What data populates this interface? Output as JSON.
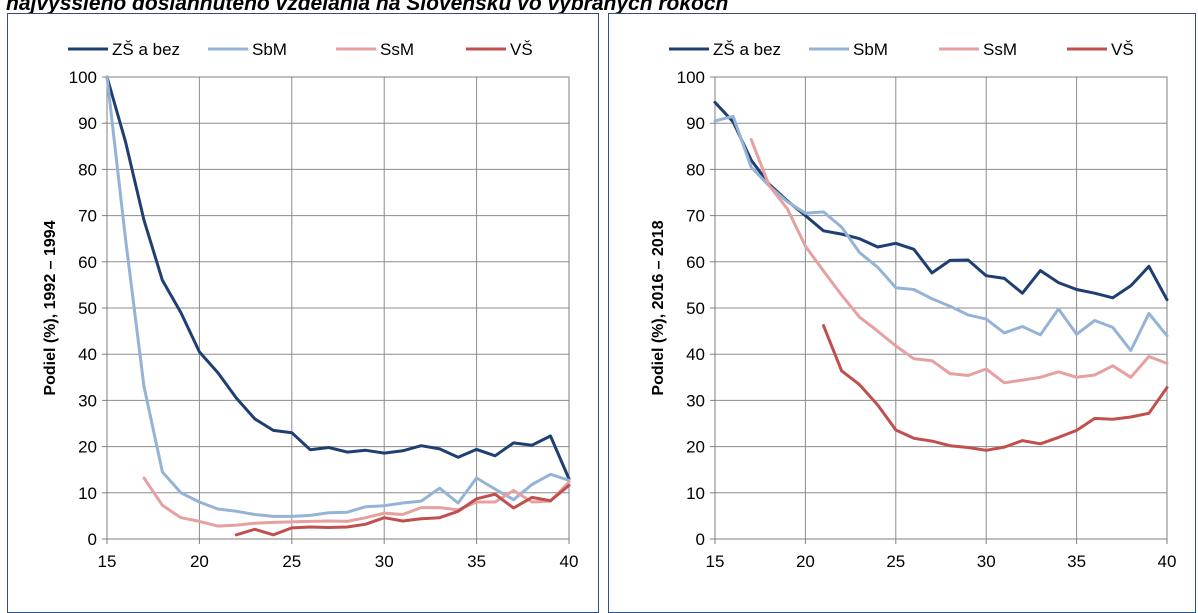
{
  "title": "najvyššieho dosiahnutého vzdelania na Slovensku vo vybraných rokoch",
  "chart_data": [
    {
      "type": "line",
      "ylabel": "Podiel (%), 1992 – 1994",
      "xlabel": "",
      "xlim": [
        15,
        40
      ],
      "ylim": [
        0,
        100
      ],
      "xticks": [
        15,
        20,
        25,
        30,
        35,
        40
      ],
      "yticks": [
        0,
        10,
        20,
        30,
        40,
        50,
        60,
        70,
        80,
        90,
        100
      ],
      "grid": true,
      "legend": "top",
      "series": [
        {
          "name": "ZŠ a bez",
          "color": "#1f3f73",
          "x": [
            15,
            16,
            17,
            18,
            19,
            20,
            21,
            22,
            23,
            24,
            25,
            26,
            27,
            28,
            29,
            30,
            31,
            32,
            33,
            34,
            35,
            36,
            37,
            38,
            39,
            40
          ],
          "values": [
            100,
            86,
            69,
            56,
            49,
            40.5,
            36,
            30.5,
            26,
            23.5,
            23,
            19.3,
            19.8,
            18.8,
            19.2,
            18.6,
            19.1,
            20.2,
            19.5,
            17.7,
            19.4,
            18,
            20.8,
            20.3,
            22.3,
            13
          ]
        },
        {
          "name": "SbM",
          "color": "#95b3d7",
          "x": [
            15,
            16,
            17,
            18,
            19,
            20,
            21,
            22,
            23,
            24,
            25,
            26,
            27,
            28,
            29,
            30,
            31,
            32,
            33,
            34,
            35,
            36,
            37,
            38,
            39,
            40
          ],
          "values": [
            100,
            65,
            33,
            14.5,
            10,
            8,
            6.5,
            6,
            5.3,
            4.9,
            4.9,
            5.1,
            5.7,
            5.8,
            7,
            7.2,
            7.8,
            8.2,
            11,
            7.8,
            13.2,
            10.8,
            8.5,
            11.8,
            14,
            12.7
          ]
        },
        {
          "name": "SsM",
          "color": "#e6a0a0",
          "x": [
            17,
            18,
            19,
            20,
            21,
            22,
            23,
            24,
            25,
            26,
            27,
            28,
            29,
            30,
            31,
            32,
            33,
            34,
            35,
            36,
            37,
            38,
            39,
            40
          ],
          "values": [
            13.2,
            7.3,
            4.6,
            3.8,
            2.8,
            3.0,
            3.4,
            3.6,
            3.7,
            3.8,
            3.9,
            3.8,
            4.6,
            5.6,
            5.3,
            6.8,
            6.8,
            6.3,
            8,
            8,
            10.5,
            8,
            8.2,
            12.3
          ]
        },
        {
          "name": "VŠ",
          "color": "#c0504d",
          "x": [
            22,
            23,
            24,
            25,
            26,
            27,
            28,
            29,
            30,
            31,
            32,
            33,
            34,
            35,
            36,
            37,
            38,
            39,
            40
          ],
          "values": [
            0.9,
            2.1,
            0.9,
            2.4,
            2.6,
            2.5,
            2.6,
            3.2,
            4.6,
            3.9,
            4.4,
            4.6,
            6,
            8.7,
            9.7,
            6.7,
            9,
            8.3,
            11.6
          ]
        }
      ]
    },
    {
      "type": "line",
      "ylabel": "Podiel (%), 2016 – 2018",
      "xlabel": "",
      "xlim": [
        15,
        40
      ],
      "ylim": [
        0,
        100
      ],
      "xticks": [
        15,
        20,
        25,
        30,
        35,
        40
      ],
      "yticks": [
        0,
        10,
        20,
        30,
        40,
        50,
        60,
        70,
        80,
        90,
        100
      ],
      "grid": true,
      "legend": "top",
      "series": [
        {
          "name": "ZŠ a bez",
          "color": "#1f3f73",
          "x": [
            15,
            16,
            17,
            18,
            19,
            20,
            21,
            22,
            23,
            24,
            25,
            26,
            27,
            28,
            29,
            30,
            31,
            32,
            33,
            34,
            35,
            36,
            37,
            38,
            39,
            40
          ],
          "values": [
            94.5,
            90.3,
            82,
            76.8,
            73.2,
            70,
            66.7,
            66,
            65,
            63.2,
            64,
            62.7,
            57.6,
            60.3,
            60.4,
            57,
            56.4,
            53.2,
            58.1,
            55.5,
            54,
            53.2,
            52.2,
            54.8,
            59,
            51.8
          ]
        },
        {
          "name": "SbM",
          "color": "#95b3d7",
          "x": [
            15,
            16,
            17,
            18,
            19,
            20,
            21,
            22,
            23,
            24,
            25,
            26,
            27,
            28,
            29,
            30,
            31,
            32,
            33,
            34,
            35,
            36,
            37,
            38,
            39,
            40
          ],
          "values": [
            90.5,
            91.5,
            80.5,
            76.4,
            73,
            70.5,
            70.8,
            67.5,
            62,
            58.8,
            54.4,
            54,
            52,
            50.4,
            48.5,
            47.6,
            44.6,
            46,
            44.2,
            49.8,
            44.3,
            47.3,
            45.8,
            40.8,
            48.8,
            44
          ]
        },
        {
          "name": "SsM",
          "color": "#e6a0a0",
          "x": [
            17,
            18,
            19,
            20,
            21,
            22,
            23,
            24,
            25,
            26,
            27,
            28,
            29,
            30,
            31,
            32,
            33,
            34,
            35,
            36,
            37,
            38,
            39,
            40
          ],
          "values": [
            86.5,
            76.5,
            71.5,
            63.4,
            58,
            52.8,
            48,
            45,
            41.8,
            39,
            38.6,
            35.8,
            35.4,
            36.8,
            33.8,
            34.4,
            35,
            36.2,
            35,
            35.5,
            37.5,
            35,
            39.5,
            38
          ]
        },
        {
          "name": "VŠ",
          "color": "#c0504d",
          "x": [
            21,
            22,
            23,
            24,
            25,
            26,
            27,
            28,
            29,
            30,
            31,
            32,
            33,
            34,
            35,
            36,
            37,
            38,
            39,
            40
          ],
          "values": [
            46.2,
            36.4,
            33.4,
            29,
            23.6,
            21.8,
            21.2,
            20.2,
            19.8,
            19.2,
            19.9,
            21.3,
            20.6,
            22,
            23.5,
            26.1,
            25.9,
            26.4,
            27.2,
            32.8
          ]
        }
      ]
    }
  ]
}
